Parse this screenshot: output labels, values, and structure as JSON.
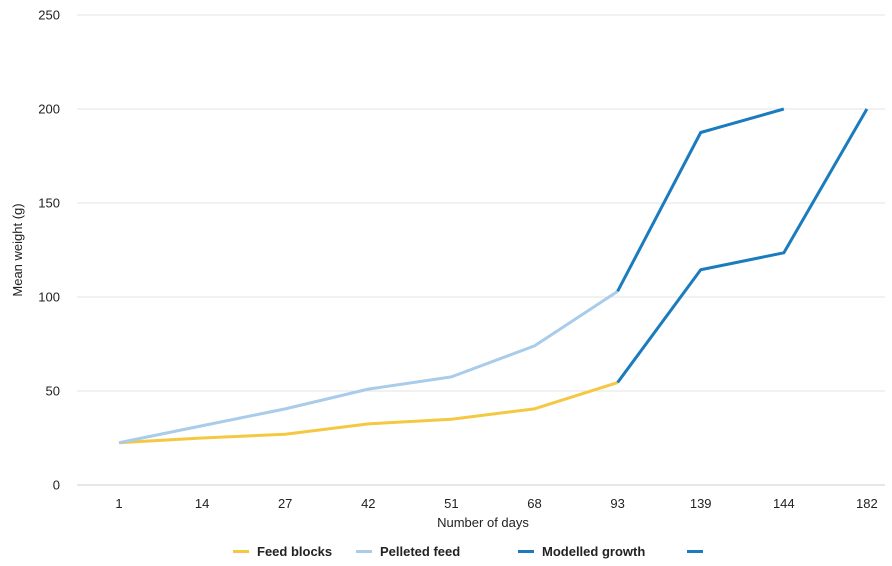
{
  "chart_data": {
    "type": "line",
    "title": "",
    "xlabel": "Number of days",
    "ylabel": "Mean weight (g)",
    "categories": [
      "1",
      "14",
      "27",
      "42",
      "51",
      "68",
      "93",
      "139",
      "144",
      "182"
    ],
    "ylim": [
      0,
      250
    ],
    "yticks": [
      0,
      50,
      100,
      150,
      200,
      250
    ],
    "grid": true,
    "legend_position": "bottom",
    "series": [
      {
        "name": "Feed blocks",
        "color": "#F5C842",
        "values": [
          22.5,
          25,
          27,
          32.5,
          35,
          40.5,
          54.5,
          null,
          null,
          null
        ]
      },
      {
        "name": "Pelleted feed",
        "color": "#A9CCEB",
        "values": [
          22.5,
          31.5,
          40.5,
          51,
          57.5,
          74,
          103,
          null,
          null,
          null
        ]
      },
      {
        "name": "Modelled growth",
        "color": "#1A7BBE",
        "values": [
          null,
          null,
          null,
          null,
          null,
          null,
          103,
          187.5,
          200,
          null
        ]
      },
      {
        "name": "",
        "color": "#1A7BBE",
        "values": [
          null,
          null,
          null,
          null,
          null,
          null,
          54.5,
          114.5,
          123.5,
          200
        ]
      }
    ]
  }
}
